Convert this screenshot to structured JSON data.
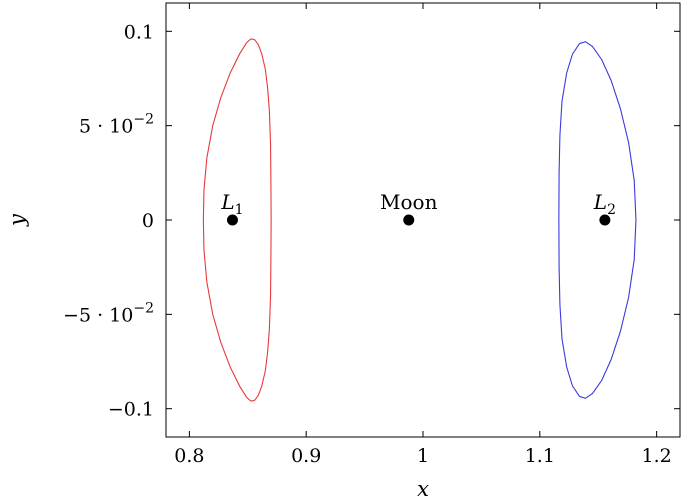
{
  "chart_data": {
    "type": "line",
    "xlabel": "x",
    "ylabel": "y",
    "xlim": [
      0.78,
      1.22
    ],
    "ylim": [
      -0.115,
      0.115
    ],
    "grid": false,
    "x_ticks": [
      {
        "value": 0.8,
        "label": "0.8"
      },
      {
        "value": 0.9,
        "label": "0.9"
      },
      {
        "value": 1.0,
        "label": "1"
      },
      {
        "value": 1.1,
        "label": "1.1"
      },
      {
        "value": 1.2,
        "label": "1.2"
      }
    ],
    "y_ticks": [
      {
        "value": 0.1,
        "label": "0.1"
      },
      {
        "value": 0.05,
        "label": "5 · 10",
        "exp": "−2"
      },
      {
        "value": 0.0,
        "label": "0"
      },
      {
        "value": -0.05,
        "label": "−5 · 10",
        "exp": "−2"
      },
      {
        "value": -0.1,
        "label": "−0.1"
      }
    ],
    "series": [
      {
        "color": "#e8393a",
        "points": [
          [
            0.8528,
            0.096
          ],
          [
            0.856,
            0.0955
          ],
          [
            0.859,
            0.093
          ],
          [
            0.862,
            0.088
          ],
          [
            0.865,
            0.08
          ],
          [
            0.867,
            0.07
          ],
          [
            0.8685,
            0.058
          ],
          [
            0.8695,
            0.04
          ],
          [
            0.8698,
            0.02
          ],
          [
            0.87,
            0.0
          ],
          [
            0.8698,
            -0.02
          ],
          [
            0.8695,
            -0.04
          ],
          [
            0.8685,
            -0.058
          ],
          [
            0.867,
            -0.07
          ],
          [
            0.865,
            -0.08
          ],
          [
            0.862,
            -0.088
          ],
          [
            0.859,
            -0.093
          ],
          [
            0.856,
            -0.0955
          ],
          [
            0.8528,
            -0.096
          ],
          [
            0.849,
            -0.094
          ],
          [
            0.843,
            -0.088
          ],
          [
            0.835,
            -0.078
          ],
          [
            0.827,
            -0.065
          ],
          [
            0.82,
            -0.05
          ],
          [
            0.815,
            -0.033
          ],
          [
            0.8125,
            -0.016
          ],
          [
            0.812,
            0.0
          ],
          [
            0.8125,
            0.016
          ],
          [
            0.815,
            0.033
          ],
          [
            0.82,
            0.05
          ],
          [
            0.827,
            0.065
          ],
          [
            0.835,
            0.078
          ],
          [
            0.843,
            0.088
          ],
          [
            0.849,
            0.094
          ],
          [
            0.8528,
            0.096
          ]
        ]
      },
      {
        "color": "#3a3ae0",
        "points": [
          [
            1.139,
            0.0945
          ],
          [
            1.145,
            0.092
          ],
          [
            1.153,
            0.085
          ],
          [
            1.161,
            0.074
          ],
          [
            1.169,
            0.059
          ],
          [
            1.176,
            0.041
          ],
          [
            1.1808,
            0.021
          ],
          [
            1.1823,
            0.0
          ],
          [
            1.1808,
            -0.021
          ],
          [
            1.176,
            -0.041
          ],
          [
            1.169,
            -0.059
          ],
          [
            1.161,
            -0.074
          ],
          [
            1.153,
            -0.085
          ],
          [
            1.145,
            -0.092
          ],
          [
            1.139,
            -0.0945
          ],
          [
            1.134,
            -0.0935
          ],
          [
            1.128,
            -0.088
          ],
          [
            1.123,
            -0.078
          ],
          [
            1.119,
            -0.063
          ],
          [
            1.1172,
            -0.045
          ],
          [
            1.1165,
            -0.025
          ],
          [
            1.1163,
            0.0
          ],
          [
            1.1165,
            0.025
          ],
          [
            1.1172,
            0.045
          ],
          [
            1.119,
            0.063
          ],
          [
            1.123,
            0.078
          ],
          [
            1.128,
            0.088
          ],
          [
            1.134,
            0.0935
          ],
          [
            1.139,
            0.0945
          ]
        ]
      }
    ],
    "markers": [
      {
        "label": "L",
        "sub": "1",
        "x": 0.8369,
        "y": 0.0
      },
      {
        "label": "Moon",
        "sub": "",
        "x": 0.9878,
        "y": 0.0
      },
      {
        "label": "L",
        "sub": "2",
        "x": 1.1557,
        "y": 0.0
      }
    ]
  }
}
